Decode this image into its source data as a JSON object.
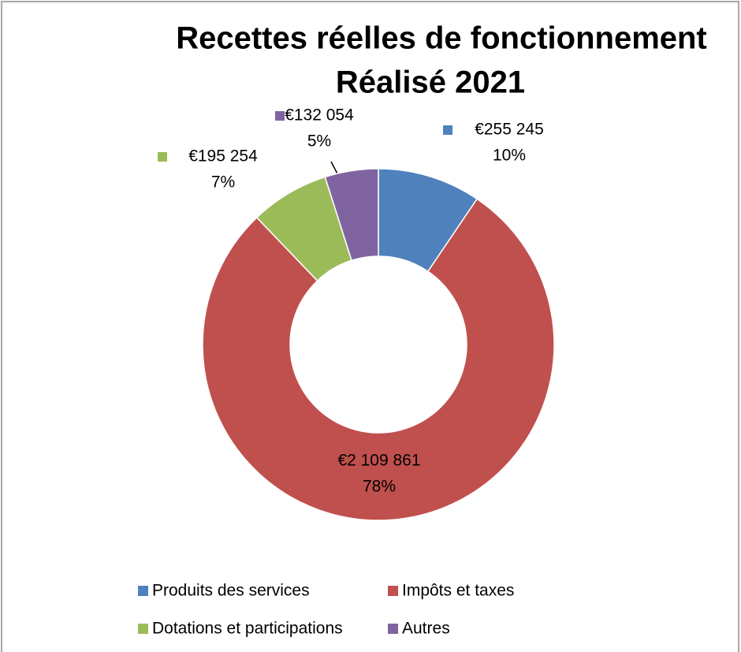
{
  "chart_data": {
    "type": "donut",
    "title": "Recettes réelles de fonctionnement",
    "subtitle": "Réalisé 2021",
    "categories": [
      "Produits des services",
      "Impôts et taxes",
      "Dotations et participations",
      "Autres"
    ],
    "values": [
      255245,
      2109861,
      195254,
      132054
    ],
    "value_labels": [
      "€255 245",
      "€2 109 861",
      "€195 254",
      "€132 054"
    ],
    "percent_labels": [
      "10%",
      "78%",
      "7%",
      "5%"
    ],
    "colors": [
      "#4f81bd",
      "#c0504d",
      "#9bbb59",
      "#8064a2"
    ],
    "legend": "bottom"
  }
}
